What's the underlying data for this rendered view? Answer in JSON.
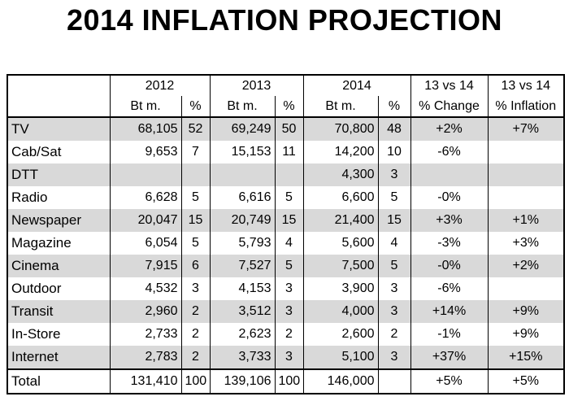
{
  "title": "2014 INFLATION PROJECTION",
  "header": {
    "year_2012": "2012",
    "year_2013": "2013",
    "year_2014": "2014",
    "change_top": "13 vs 14",
    "inflation_top": "13 vs 14",
    "btm_2012": "Bt m.",
    "pct_2012": "%",
    "btm_2013": "Bt m.",
    "pct_2013": "%",
    "btm_2014": "Bt m.",
    "pct_2014": "%",
    "change_sub": "% Change",
    "inflation_sub": "% Inflation"
  },
  "rows": [
    {
      "media": "TV",
      "v2012": "68,105",
      "p2012": "52",
      "v2013": "69,249",
      "p2013": "50",
      "v2014": "70,800",
      "p2014": "48",
      "change": "+2%",
      "inflation": "+7%"
    },
    {
      "media": "Cab/Sat",
      "v2012": "9,653",
      "p2012": "7",
      "v2013": "15,153",
      "p2013": "11",
      "v2014": "14,200",
      "p2014": "10",
      "change": "-6%",
      "inflation": ""
    },
    {
      "media": "DTT",
      "v2012": "",
      "p2012": "",
      "v2013": "",
      "p2013": "",
      "v2014": "4,300",
      "p2014": "3",
      "change": "",
      "inflation": ""
    },
    {
      "media": "Radio",
      "v2012": "6,628",
      "p2012": "5",
      "v2013": "6,616",
      "p2013": "5",
      "v2014": "6,600",
      "p2014": "5",
      "change": "-0%",
      "inflation": ""
    },
    {
      "media": "Newspaper",
      "v2012": "20,047",
      "p2012": "15",
      "v2013": "20,749",
      "p2013": "15",
      "v2014": "21,400",
      "p2014": "15",
      "change": "+3%",
      "inflation": "+1%"
    },
    {
      "media": "Magazine",
      "v2012": "6,054",
      "p2012": "5",
      "v2013": "5,793",
      "p2013": "4",
      "v2014": "5,600",
      "p2014": "4",
      "change": "-3%",
      "inflation": "+3%"
    },
    {
      "media": "Cinema",
      "v2012": "7,915",
      "p2012": "6",
      "v2013": "7,527",
      "p2013": "5",
      "v2014": "7,500",
      "p2014": "5",
      "change": "-0%",
      "inflation": "+2%"
    },
    {
      "media": "Outdoor",
      "v2012": "4,532",
      "p2012": "3",
      "v2013": "4,153",
      "p2013": "3",
      "v2014": "3,900",
      "p2014": "3",
      "change": "-6%",
      "inflation": ""
    },
    {
      "media": "Transit",
      "v2012": "2,960",
      "p2012": "2",
      "v2013": "3,512",
      "p2013": "3",
      "v2014": "4,000",
      "p2014": "3",
      "change": "+14%",
      "inflation": "+9%"
    },
    {
      "media": "In-Store",
      "v2012": "2,733",
      "p2012": "2",
      "v2013": "2,623",
      "p2013": "2",
      "v2014": "2,600",
      "p2014": "2",
      "change": "-1%",
      "inflation": "+9%"
    },
    {
      "media": "Internet",
      "v2012": "2,783",
      "p2012": "2",
      "v2013": "3,733",
      "p2013": "3",
      "v2014": "5,100",
      "p2014": "3",
      "change": "+37%",
      "inflation": "+15%"
    }
  ],
  "total": {
    "media": "Total",
    "v2012": "131,410",
    "p2012": "100",
    "v2013": "139,106",
    "p2013": "100",
    "v2014": "146,000",
    "p2014": "",
    "change": "+5%",
    "inflation": "+5%"
  },
  "colors": {
    "shade": "#d9d9d9",
    "border": "#000000"
  }
}
